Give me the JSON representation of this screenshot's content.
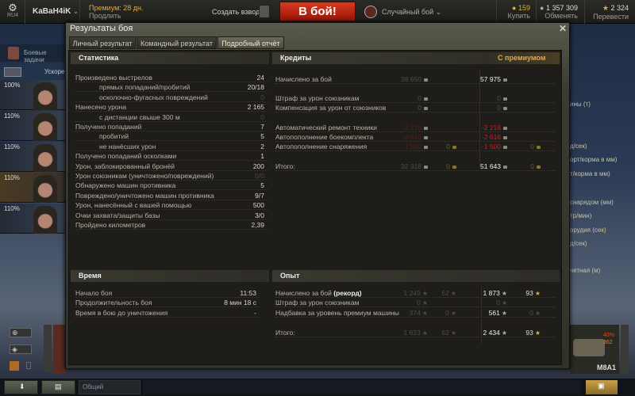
{
  "topbar": {
    "server": "RU4",
    "player": "KaBaH4iK",
    "premium": "Премиум: 28 дн.",
    "extend": "Продлить",
    "platoon": "Создать взвод",
    "battle": "В бой!",
    "mode": "Случайный бой",
    "gold": "159",
    "gold_action": "Купить",
    "credits": "1 357 309",
    "credits_action": "Обменять",
    "free_xp": "2 324",
    "free_xp_action": "Перевести"
  },
  "sidebar": {
    "missions": "Боевые задачи",
    "accel": "Ускорен",
    "crew": [
      "100%",
      "110%",
      "110%",
      "110%",
      "110%"
    ]
  },
  "right_partial": [
    "ины (т)",
    "д/сек)",
    "орт/корма в мм)",
    "т/корма в мм)",
    "снарядом (мм)",
    "тр/мин)",
    "орудия (сек)",
    "д/сек)",
    "четная (м)"
  ],
  "dialog": {
    "title": "Результаты боя",
    "tabs": [
      "Личный результат",
      "Командный результат",
      "Подробный отчёт"
    ],
    "active_tab": 2
  },
  "stats": {
    "header": "Статистика",
    "rows": [
      {
        "label": "Произведено выстрелов",
        "value": "24",
        "indent": false
      },
      {
        "label": "прямых попаданий/пробитий",
        "value": "20/18",
        "indent": true
      },
      {
        "label": "осколочно-фугасных повреждений",
        "value": "0",
        "indent": true,
        "dim": true
      },
      {
        "label": "Нанесено урона",
        "value": "2 165",
        "indent": false
      },
      {
        "label": "с дистанции свыше 300 м",
        "value": "0",
        "indent": true,
        "dim": true
      },
      {
        "label": "Получено попаданий",
        "value": "7",
        "indent": false
      },
      {
        "label": "пробитий",
        "value": "5",
        "indent": true
      },
      {
        "label": "не нанёсших урон",
        "value": "2",
        "indent": true
      },
      {
        "label": "Получено попаданий осколками",
        "value": "1",
        "indent": false
      },
      {
        "label": "Урон, заблокированный бронёй",
        "value": "200",
        "indent": false
      },
      {
        "label": "Урон союзникам (уничтожено/повреждений)",
        "value": "0/0",
        "indent": false,
        "dim": true
      },
      {
        "label": "Обнаружено машин противника",
        "value": "5",
        "indent": false
      },
      {
        "label": "Повреждено/уничтожено машин противника",
        "value": "9/7",
        "indent": false
      },
      {
        "label": "Урон, нанесённый с вашей помощью",
        "value": "500",
        "indent": false
      },
      {
        "label": "Очки захвата/защиты базы",
        "value": "3/0",
        "indent": false
      },
      {
        "label": "Пройдено километров",
        "value": "2,39",
        "indent": false
      }
    ]
  },
  "credits": {
    "header": "Кредиты",
    "premium_header": "С премиумом",
    "rows": [
      {
        "label": "Начислено за бой",
        "base": "38 650",
        "base_gold": "",
        "prem": "57 975",
        "prem_gold": ""
      },
      {
        "label": "Штраф за урон союзникам",
        "base": "0",
        "base_gold": "",
        "prem": "0",
        "prem_gold": ""
      },
      {
        "label": "Компенсация за урон от союзников",
        "base": "0",
        "base_gold": "",
        "prem": "0",
        "prem_gold": ""
      },
      {
        "label": "Автоматический ремонт техники",
        "base": "-2 216",
        "base_gold": "",
        "prem": "-2 216",
        "prem_gold": ""
      },
      {
        "label": "Автопополнение боекомплекта",
        "base": "-2 616",
        "base_gold": "",
        "prem": "-2 616",
        "prem_gold": ""
      },
      {
        "label": "Автопополнение снаряжения",
        "base": "-1 500",
        "base_gold": "0",
        "prem": "-1 500",
        "prem_gold": "0"
      },
      {
        "label": "Итого:",
        "base": "32 318",
        "base_gold": "0",
        "prem": "51 643",
        "prem_gold": "0"
      }
    ]
  },
  "time": {
    "header": "Время",
    "rows": [
      {
        "label": "Начало боя",
        "value": "11:53"
      },
      {
        "label": "Продолжительность боя",
        "value": "8 мин 18 с"
      },
      {
        "label": "Время в бою до уничтожения",
        "value": "-"
      }
    ]
  },
  "xp": {
    "header": "Опыт",
    "record": "(рекорд)",
    "rows": [
      {
        "label": "Начислено за бой",
        "base": "1 249",
        "base_free": "62",
        "prem": "1 873",
        "prem_free": "93"
      },
      {
        "label": "Штраф за урон союзникам",
        "base": "0",
        "base_free": "",
        "prem": "0",
        "prem_free": ""
      },
      {
        "label": "Надбавка за уровень премиум машины",
        "base": "374",
        "base_free": "0",
        "prem": "561",
        "prem_free": "0"
      },
      {
        "label": "Итого:",
        "base": "1 623",
        "base_free": "62",
        "prem": "2 434",
        "prem_free": "93"
      }
    ]
  },
  "vehicle": {
    "name": "M8A1",
    "hp_pct": "40%",
    "hp": "362"
  },
  "chat": {
    "channel": "Общий"
  },
  "colors": {
    "accent_red": "#c9240e",
    "premium_gold": "#e0a94a",
    "negative": "#d41d1d"
  }
}
